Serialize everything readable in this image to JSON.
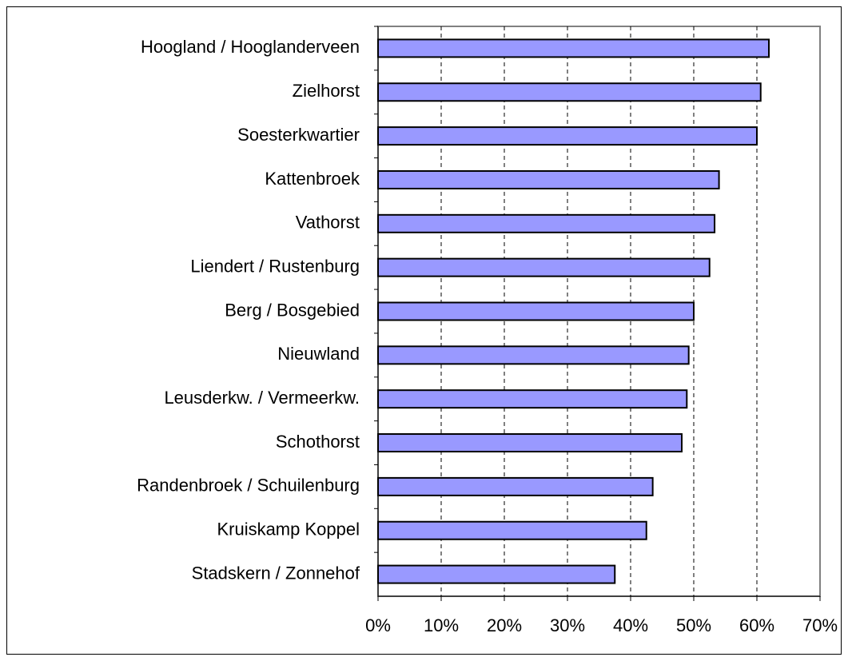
{
  "chart_data": {
    "type": "barh",
    "categories": [
      "Hoogland / Hooglanderveen",
      "Zielhorst",
      "Soesterkwartier",
      "Kattenbroek",
      "Vathorst",
      "Liendert / Rustenburg",
      "Berg / Bosgebied",
      "Nieuwland",
      "Leusderkw. / Vermeerkw.",
      "Schothorst",
      "Randenbroek / Schuilenburg",
      "Kruiskamp Koppel",
      "Stadskern / Zonnehof"
    ],
    "values": [
      61.9,
      60.6,
      60.0,
      54.0,
      53.3,
      52.5,
      50.0,
      49.2,
      48.9,
      48.1,
      43.5,
      42.5,
      37.5
    ],
    "color": "#9999ff",
    "xlim": [
      0,
      70
    ],
    "xticks": [
      {
        "value": 0,
        "label": "0%"
      },
      {
        "value": 10,
        "label": "10%"
      },
      {
        "value": 20,
        "label": "20%"
      },
      {
        "value": 30,
        "label": "30%"
      },
      {
        "value": 40,
        "label": "40%"
      },
      {
        "value": 50,
        "label": "50%"
      },
      {
        "value": 60,
        "label": "60%"
      },
      {
        "value": 70,
        "label": "70%"
      }
    ],
    "grid": true
  }
}
